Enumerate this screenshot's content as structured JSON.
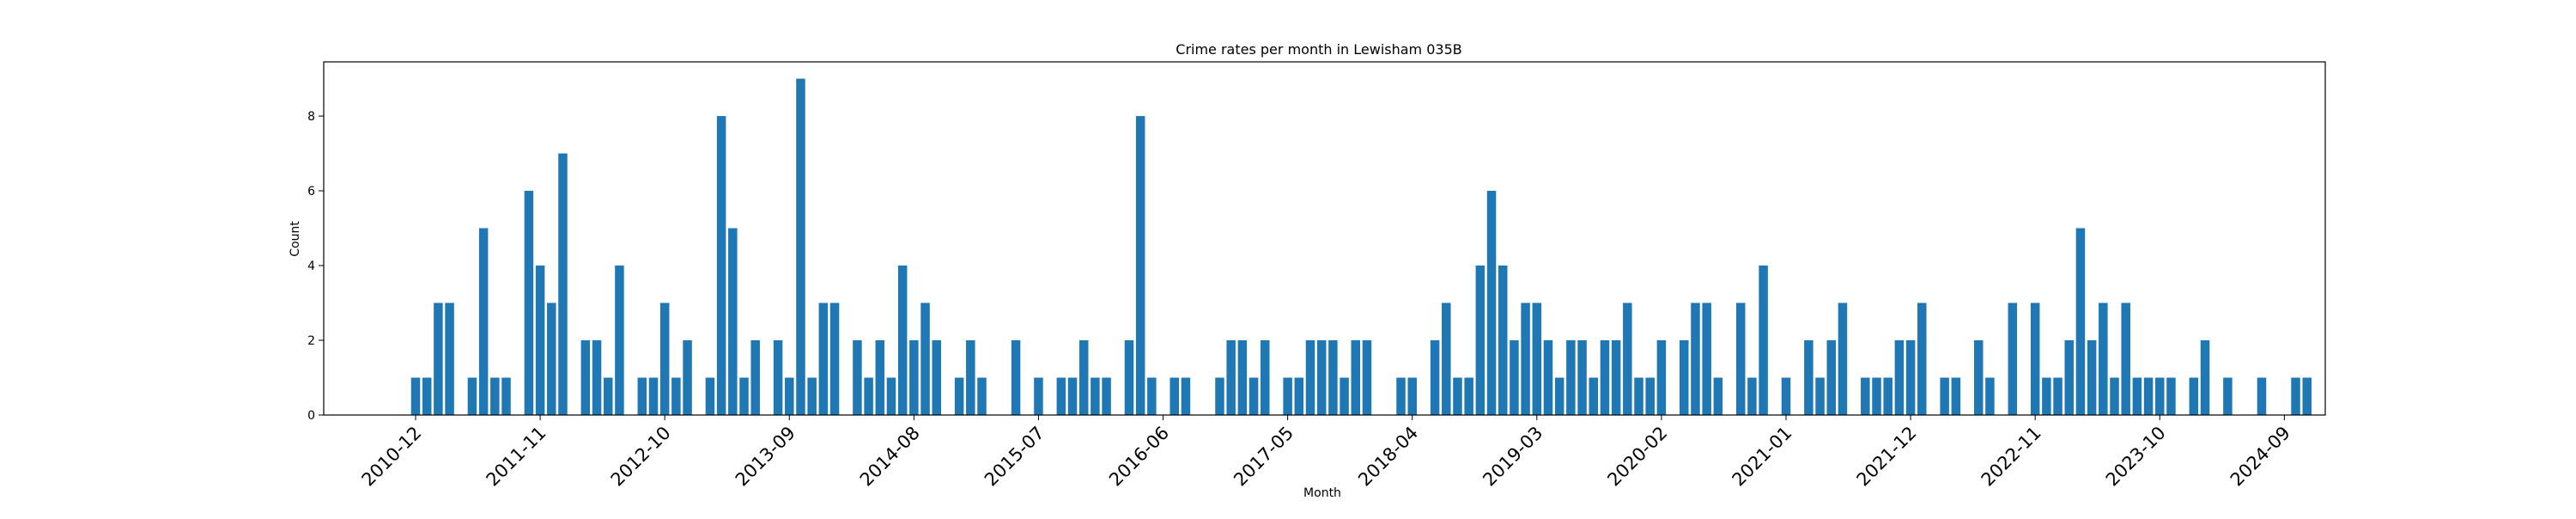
{
  "chart_data": {
    "type": "bar",
    "title": "Crime rates per month in Lewisham 035B",
    "xlabel": "Month",
    "ylabel": "Count",
    "ylim": [
      0,
      9.45
    ],
    "yticks": [
      0,
      2,
      4,
      6,
      8
    ],
    "xticks": [
      "2010-12",
      "2011-11",
      "2012-10",
      "2013-09",
      "2014-08",
      "2015-07",
      "2016-06",
      "2017-05",
      "2018-04",
      "2019-03",
      "2020-02",
      "2021-01",
      "2021-12",
      "2022-11",
      "2023-10",
      "2024-09"
    ],
    "grid": false,
    "bar_color": "#1f77b4",
    "x": [
      "2010-12",
      "2011-01",
      "2011-02",
      "2011-03",
      "2011-05",
      "2011-06",
      "2011-07",
      "2011-08",
      "2011-10",
      "2011-11",
      "2011-12",
      "2012-01",
      "2012-03",
      "2012-04",
      "2012-05",
      "2012-06",
      "2012-08",
      "2012-09",
      "2012-10",
      "2012-11",
      "2012-12",
      "2013-02",
      "2013-03",
      "2013-04",
      "2013-05",
      "2013-06",
      "2013-08",
      "2013-09",
      "2013-10",
      "2013-11",
      "2013-12",
      "2014-01",
      "2014-03",
      "2014-04",
      "2014-05",
      "2014-06",
      "2014-07",
      "2014-08",
      "2014-09",
      "2014-10",
      "2014-12",
      "2015-01",
      "2015-02",
      "2015-05",
      "2015-07",
      "2015-09",
      "2015-10",
      "2015-11",
      "2015-12",
      "2016-01",
      "2016-03",
      "2016-04",
      "2016-05",
      "2016-07",
      "2016-08",
      "2016-11",
      "2016-12",
      "2017-01",
      "2017-02",
      "2017-03",
      "2017-05",
      "2017-06",
      "2017-07",
      "2017-08",
      "2017-09",
      "2017-10",
      "2017-11",
      "2017-12",
      "2018-03",
      "2018-04",
      "2018-06",
      "2018-07",
      "2018-08",
      "2018-09",
      "2018-10",
      "2018-11",
      "2018-12",
      "2019-01",
      "2019-02",
      "2019-03",
      "2019-04",
      "2019-05",
      "2019-06",
      "2019-07",
      "2019-08",
      "2019-09",
      "2019-10",
      "2019-11",
      "2019-12",
      "2020-01",
      "2020-02",
      "2020-04",
      "2020-05",
      "2020-06",
      "2020-07",
      "2020-09",
      "2020-10",
      "2020-11",
      "2021-01",
      "2021-03",
      "2021-04",
      "2021-05",
      "2021-06",
      "2021-08",
      "2021-09",
      "2021-10",
      "2021-11",
      "2021-12",
      "2022-01",
      "2022-03",
      "2022-04",
      "2022-06",
      "2022-07",
      "2022-09",
      "2022-11",
      "2022-12",
      "2023-01",
      "2023-02",
      "2023-03",
      "2023-04",
      "2023-05",
      "2023-06",
      "2023-07",
      "2023-08",
      "2023-09",
      "2023-10",
      "2023-11",
      "2024-01",
      "2024-02",
      "2024-04",
      "2024-07",
      "2024-10",
      "2024-11"
    ],
    "values": [
      1,
      1,
      3,
      3,
      1,
      5,
      1,
      1,
      6,
      4,
      3,
      7,
      2,
      2,
      1,
      4,
      1,
      1,
      3,
      1,
      2,
      1,
      8,
      5,
      1,
      2,
      2,
      1,
      9,
      1,
      3,
      3,
      2,
      1,
      2,
      1,
      4,
      2,
      3,
      2,
      1,
      2,
      1,
      2,
      1,
      1,
      1,
      2,
      1,
      1,
      2,
      8,
      1,
      1,
      1,
      1,
      2,
      2,
      1,
      2,
      1,
      1,
      2,
      2,
      2,
      1,
      2,
      2,
      1,
      1,
      2,
      3,
      1,
      1,
      4,
      6,
      4,
      2,
      3,
      3,
      2,
      1,
      2,
      2,
      1,
      2,
      2,
      3,
      1,
      1,
      2,
      2,
      3,
      3,
      1,
      3,
      1,
      4,
      1,
      2,
      1,
      2,
      3,
      1,
      1,
      1,
      2,
      2,
      3,
      1,
      1,
      2,
      1,
      3,
      3,
      1,
      1,
      2,
      5,
      2,
      3,
      1,
      3,
      1,
      1,
      1,
      1,
      1,
      2,
      1,
      1,
      1,
      1
    ]
  }
}
